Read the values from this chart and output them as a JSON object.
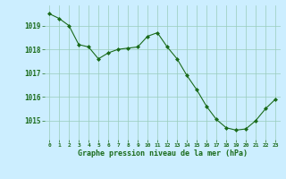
{
  "x": [
    0,
    1,
    2,
    3,
    4,
    5,
    6,
    7,
    8,
    9,
    10,
    11,
    12,
    13,
    14,
    15,
    16,
    17,
    18,
    19,
    20,
    21,
    22,
    23
  ],
  "y": [
    1019.5,
    1019.3,
    1019.0,
    1018.2,
    1018.1,
    1017.6,
    1017.85,
    1018.0,
    1018.05,
    1018.1,
    1018.55,
    1018.7,
    1018.1,
    1017.6,
    1016.9,
    1016.3,
    1015.6,
    1015.05,
    1014.7,
    1014.6,
    1014.65,
    1015.0,
    1015.5,
    1015.9
  ],
  "line_color": "#1a6b1a",
  "marker": "D",
  "marker_size": 2.0,
  "bg_color": "#cceeff",
  "grid_color": "#99ccbb",
  "xlabel": "Graphe pression niveau de la mer (hPa)",
  "xlabel_color": "#1a6b1a",
  "tick_color": "#1a6b1a",
  "ylim": [
    1014.2,
    1019.85
  ],
  "xlim": [
    -0.5,
    23.5
  ],
  "yticks": [
    1015,
    1016,
    1017,
    1018,
    1019
  ],
  "xticks": [
    0,
    1,
    2,
    3,
    4,
    5,
    6,
    7,
    8,
    9,
    10,
    11,
    12,
    13,
    14,
    15,
    16,
    17,
    18,
    19,
    20,
    21,
    22,
    23
  ],
  "xtick_labels": [
    "0",
    "1",
    "2",
    "3",
    "4",
    "5",
    "6",
    "7",
    "8",
    "9",
    "10",
    "11",
    "12",
    "13",
    "14",
    "15",
    "16",
    "17",
    "18",
    "19",
    "20",
    "21",
    "22",
    "23"
  ]
}
